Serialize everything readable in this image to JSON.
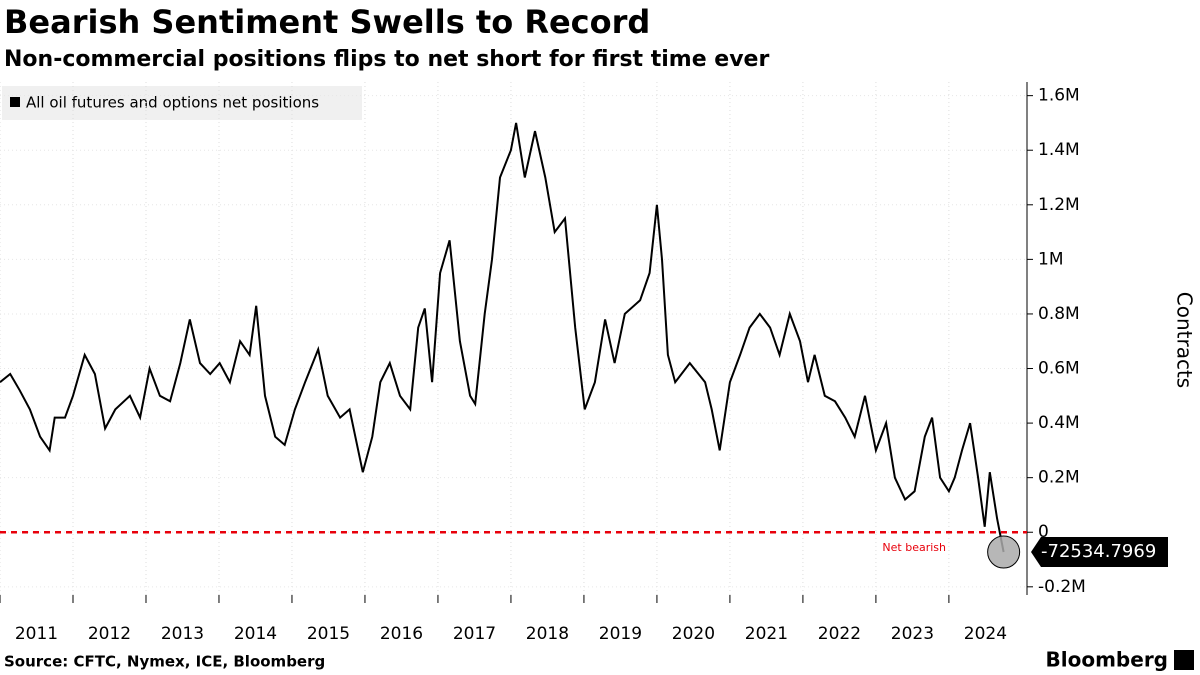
{
  "chart_data": {
    "type": "line",
    "title": "Bearish Sentiment Swells to Record",
    "subtitle": "Non-commercial positions flips to net short for first time ever",
    "y_axis_label": "Contracts",
    "source": "Source: CFTC, Nymex, ICE, Bloomberg",
    "brand": "Bloomberg",
    "legend_position": "top-left",
    "x": [
      2011.0,
      2011.14,
      2011.27,
      2011.41,
      2011.55,
      2011.68,
      2011.75,
      2011.89,
      2012.0,
      2012.16,
      2012.3,
      2012.44,
      2012.58,
      2012.78,
      2012.92,
      2013.05,
      2013.19,
      2013.33,
      2013.47,
      2013.6,
      2013.74,
      2013.88,
      2014.01,
      2014.15,
      2014.29,
      2014.42,
      2014.51,
      2014.63,
      2014.77,
      2014.9,
      2015.04,
      2015.18,
      2015.36,
      2015.49,
      2015.66,
      2015.79,
      2015.97,
      2016.1,
      2016.21,
      2016.34,
      2016.48,
      2016.62,
      2016.73,
      2016.82,
      2016.92,
      2017.03,
      2017.16,
      2017.3,
      2017.44,
      2017.51,
      2017.64,
      2017.74,
      2017.85,
      2018.0,
      2018.07,
      2018.19,
      2018.33,
      2018.47,
      2018.6,
      2018.74,
      2018.88,
      2019.01,
      2019.15,
      2019.29,
      2019.42,
      2019.56,
      2019.77,
      2019.9,
      2020.0,
      2020.07,
      2020.15,
      2020.25,
      2020.45,
      2020.66,
      2020.75,
      2020.86,
      2021.0,
      2021.14,
      2021.27,
      2021.41,
      2021.55,
      2021.68,
      2021.82,
      2021.96,
      2022.07,
      2022.16,
      2022.3,
      2022.44,
      2022.58,
      2022.71,
      2022.85,
      2023.0,
      2023.14,
      2023.26,
      2023.4,
      2023.53,
      2023.67,
      2023.77,
      2023.88,
      2024.0,
      2024.08,
      2024.18,
      2024.29,
      2024.4,
      2024.49,
      2024.56,
      2024.66,
      2024.75
    ],
    "series": [
      {
        "name": "All oil futures and options net positions",
        "color": "#000000",
        "values": [
          550000,
          580000,
          520000,
          450000,
          350000,
          300000,
          420000,
          420000,
          500000,
          650000,
          580000,
          380000,
          450000,
          500000,
          420000,
          600000,
          500000,
          480000,
          620000,
          780000,
          620000,
          580000,
          620000,
          550000,
          700000,
          650000,
          830000,
          500000,
          350000,
          320000,
          450000,
          550000,
          670000,
          500000,
          420000,
          450000,
          220000,
          350000,
          550000,
          620000,
          500000,
          450000,
          750000,
          820000,
          550000,
          950000,
          1070000,
          700000,
          500000,
          470000,
          800000,
          1000000,
          1300000,
          1400000,
          1500000,
          1300000,
          1470000,
          1300000,
          1100000,
          1150000,
          750000,
          450000,
          550000,
          780000,
          620000,
          800000,
          850000,
          950000,
          1200000,
          1000000,
          650000,
          550000,
          620000,
          550000,
          450000,
          300000,
          550000,
          650000,
          750000,
          800000,
          750000,
          650000,
          800000,
          700000,
          550000,
          650000,
          500000,
          480000,
          420000,
          350000,
          500000,
          300000,
          400000,
          200000,
          120000,
          150000,
          350000,
          420000,
          200000,
          150000,
          200000,
          300000,
          400000,
          200000,
          20000,
          220000,
          50000,
          -72534.7969
        ]
      }
    ],
    "xlim": [
      2011,
      2025.07
    ],
    "xticks": [
      {
        "value": 2011.5,
        "label": "2011"
      },
      {
        "value": 2012.5,
        "label": "2012"
      },
      {
        "value": 2013.5,
        "label": "2013"
      },
      {
        "value": 2014.5,
        "label": "2014"
      },
      {
        "value": 2015.5,
        "label": "2015"
      },
      {
        "value": 2016.5,
        "label": "2016"
      },
      {
        "value": 2017.5,
        "label": "2017"
      },
      {
        "value": 2018.5,
        "label": "2018"
      },
      {
        "value": 2019.5,
        "label": "2019"
      },
      {
        "value": 2020.5,
        "label": "2020"
      },
      {
        "value": 2021.5,
        "label": "2021"
      },
      {
        "value": 2022.5,
        "label": "2022"
      },
      {
        "value": 2023.5,
        "label": "2023"
      },
      {
        "value": 2024.5,
        "label": "2024"
      }
    ],
    "ylim": [
      -230000,
      1650000
    ],
    "yticks": [
      {
        "value": -200000,
        "label": "-0.2M"
      },
      0,
      {
        "value": 200000,
        "label": "0.2M"
      },
      {
        "value": 400000,
        "label": "0.4M"
      },
      {
        "value": 600000,
        "label": "0.6M"
      },
      {
        "value": 800000,
        "label": "0.8M"
      },
      {
        "value": 1000000,
        "label": "1M"
      },
      {
        "value": 1200000,
        "label": "1.2M"
      },
      {
        "value": 1400000,
        "label": "1.4M"
      },
      {
        "value": 1600000,
        "label": "1.6M"
      }
    ],
    "reference_line": {
      "value": 0,
      "label": "Net bearish",
      "color": "#e8000b"
    },
    "grid": true
  }
}
